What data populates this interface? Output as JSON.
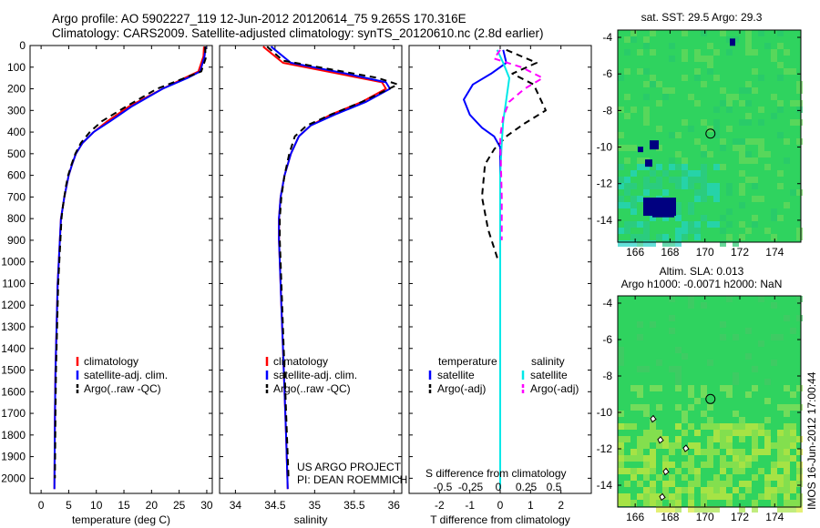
{
  "header": {
    "line1": "Argo profile: AO 5902227_119 12-Jun-2012 20120614_75 9.265S 170.316E",
    "line2": "Climatology: CARS2009. Satellite-adjusted climatology: synTS_20120610.nc (2.8d earlier)"
  },
  "colors": {
    "climatology": "#ff0000",
    "satellite": "#0000ff",
    "argo": "#000000",
    "salinity_satellite": "#00e8e8",
    "salinity_argo": "#ff00ff",
    "map_green": "#2fd35f",
    "map_cyan": "#22d3c8",
    "map_blue": "#000080",
    "map_yellow": "#d8ea3a"
  },
  "depth_axis": {
    "ticks": [
      "0",
      "100",
      "200",
      "300",
      "400",
      "500",
      "600",
      "700",
      "800",
      "900",
      "1000",
      "1100",
      "1200",
      "1300",
      "1400",
      "1500",
      "1600",
      "1700",
      "1800",
      "1900",
      "2000"
    ],
    "range": [
      0,
      2070
    ]
  },
  "panels": [
    {
      "id": "temperature",
      "xlabel": "temperature (deg C)",
      "xticks": [
        "0",
        "5",
        "10",
        "15",
        "20",
        "25",
        "30"
      ],
      "xrange": [
        -2,
        31
      ],
      "legend": [
        "climatology",
        "satellite-adj. clim.",
        "Argo(..raw -QC)"
      ]
    },
    {
      "id": "salinity",
      "xlabel": "salinity",
      "xticks": [
        "34",
        "34.5",
        "35",
        "35.5",
        "36"
      ],
      "xrange": [
        33.8,
        36.1
      ],
      "legend": [
        "climatology",
        "satellite-adj. clim.",
        "Argo(..raw -QC)"
      ],
      "credit1": "US ARGO PROJECT",
      "credit2": "PI: DEAN ROEMMICH"
    },
    {
      "id": "difference",
      "xlabel": "T difference from climatology",
      "xlabel_top": "S difference from climatology",
      "xticks": [
        "-2",
        "-1",
        "0",
        "1",
        "2"
      ],
      "sticks": [
        "-0.5",
        "-0.25",
        "0",
        "0.25",
        "0.5"
      ],
      "xrange": [
        -3,
        3
      ],
      "legend_head_t": "temperature",
      "legend_head_s": "salinity",
      "legend_t": [
        "satellite",
        "Argo(-adj)"
      ],
      "legend_s": [
        "satellite",
        "Argo(-adj)"
      ]
    }
  ],
  "maps": [
    {
      "id": "sst-map",
      "title": "sat. SST: 29.5 Argo: 29.3",
      "yticks": [
        "-4",
        "-6",
        "-8",
        "-10",
        "-12",
        "-14"
      ],
      "xticks": [
        "166",
        "168",
        "170",
        "172",
        "174"
      ]
    },
    {
      "id": "sla-map",
      "title_line1": "Altim. SLA: 0.013",
      "title_line2": "Argo h1000: -0.0071 h2000: NaN",
      "yticks": [
        "-4",
        "-6",
        "-8",
        "-10",
        "-12",
        "-14"
      ],
      "xticks": [
        "166",
        "168",
        "170",
        "172",
        "174"
      ]
    }
  ],
  "footer": {
    "timestamp": "IMOS 16-Jun-2012 17:00:44"
  },
  "chart_data": [
    {
      "type": "line",
      "title": "",
      "xlabel": "temperature (deg C)",
      "ylabel": "",
      "xlim": [
        -2,
        31
      ],
      "ylim": [
        2070,
        0
      ],
      "series": [
        {
          "name": "climatology",
          "color": "#ff0000",
          "dash": "solid",
          "x": [
            29.5,
            29.4,
            28.5,
            26,
            22,
            16,
            12,
            9.5,
            7.5,
            6.3,
            5.6,
            5.0,
            4.6,
            4.2,
            3.9,
            3.6,
            3.4,
            3.2,
            3.0,
            2.9,
            2.8,
            2.6,
            2.5,
            2.4
          ],
          "y": [
            5,
            50,
            120,
            150,
            200,
            280,
            350,
            400,
            450,
            500,
            550,
            600,
            650,
            700,
            750,
            800,
            900,
            1000,
            1100,
            1200,
            1300,
            1500,
            1700,
            2050
          ]
        },
        {
          "name": "satellite-adj. clim.",
          "color": "#0000ff",
          "dash": "solid",
          "x": [
            29.8,
            29.6,
            28.8,
            26.5,
            22,
            16.5,
            12.5,
            9.5,
            7.5,
            6.3,
            5.6,
            5.0,
            4.6,
            4.2,
            3.9,
            3.6,
            3.4,
            3.2,
            3.0,
            2.9,
            2.8,
            2.6,
            2.5,
            2.4
          ],
          "y": [
            5,
            50,
            120,
            150,
            200,
            280,
            350,
            400,
            450,
            500,
            550,
            600,
            650,
            700,
            750,
            800,
            900,
            1000,
            1100,
            1200,
            1300,
            1500,
            1700,
            2050
          ]
        },
        {
          "name": "Argo(..raw -QC)",
          "color": "#000000",
          "dash": "dashed",
          "x": [
            29.7,
            29.8,
            29.0,
            26,
            21,
            15.5,
            11,
            8.8,
            7.2,
            6.2,
            5.5,
            4.9,
            4.5,
            4.2,
            3.9,
            3.7,
            3.5,
            3.3,
            3.1,
            3.0,
            2.9,
            2.7,
            2.6,
            2.5
          ],
          "y": [
            5,
            60,
            120,
            150,
            200,
            280,
            350,
            400,
            450,
            500,
            550,
            600,
            650,
            700,
            750,
            800,
            900,
            1000,
            1100,
            1200,
            1300,
            1500,
            1700,
            2000
          ]
        }
      ]
    },
    {
      "type": "line",
      "title": "",
      "xlabel": "salinity",
      "ylabel": "",
      "xlim": [
        33.8,
        36.1
      ],
      "ylim": [
        2070,
        0
      ],
      "series": [
        {
          "name": "climatology",
          "color": "#ff0000",
          "dash": "solid",
          "x": [
            34.35,
            34.6,
            35.3,
            35.85,
            35.9,
            35.6,
            35.2,
            34.95,
            34.8,
            34.7,
            34.62,
            34.57,
            34.55,
            34.55,
            34.56,
            34.58,
            34.6,
            34.62,
            34.64,
            34.66
          ],
          "y": [
            5,
            80,
            130,
            170,
            200,
            260,
            320,
            370,
            420,
            500,
            600,
            700,
            800,
            900,
            1000,
            1200,
            1400,
            1600,
            1800,
            2050
          ]
        },
        {
          "name": "satellite-adj. clim.",
          "color": "#0000ff",
          "dash": "solid",
          "x": [
            34.45,
            34.7,
            35.4,
            35.9,
            35.95,
            35.65,
            35.25,
            34.95,
            34.8,
            34.7,
            34.62,
            34.57,
            34.55,
            34.55,
            34.56,
            34.58,
            34.6,
            34.62,
            34.64,
            34.66
          ],
          "y": [
            5,
            80,
            130,
            170,
            200,
            260,
            320,
            370,
            420,
            500,
            600,
            700,
            800,
            900,
            1000,
            1200,
            1400,
            1600,
            1800,
            2050
          ]
        },
        {
          "name": "Argo(..raw -QC)",
          "color": "#000000",
          "dash": "dashed",
          "x": [
            34.4,
            34.6,
            35.2,
            35.8,
            36.05,
            35.6,
            35.2,
            34.9,
            34.75,
            34.68,
            34.62,
            34.58,
            34.56,
            34.56,
            34.57,
            34.59,
            34.61,
            34.63,
            34.65,
            34.67
          ],
          "y": [
            5,
            70,
            110,
            150,
            180,
            260,
            320,
            370,
            420,
            500,
            600,
            700,
            800,
            900,
            1000,
            1200,
            1400,
            1600,
            1800,
            2000
          ]
        }
      ]
    },
    {
      "type": "line",
      "title": "",
      "xlabel": "T difference from climatology",
      "ylabel": "",
      "xlim": [
        -3,
        3
      ],
      "ylim": [
        2070,
        0
      ],
      "series": [
        {
          "name": "temperature satellite",
          "color": "#0000ff",
          "dash": "solid",
          "x": [
            0.1,
            0.2,
            -0.3,
            -0.9,
            -1.2,
            -1.0,
            -0.6,
            -0.2,
            0,
            0,
            0,
            0,
            0,
            0,
            0
          ],
          "y": [
            20,
            80,
            130,
            180,
            250,
            320,
            380,
            420,
            470,
            600,
            800,
            1000,
            1300,
            1700,
            2050
          ]
        },
        {
          "name": "temperature Argo(-adj)",
          "color": "#000000",
          "dash": "dashed",
          "x": [
            0.2,
            1.2,
            0.4,
            1.1,
            1.5,
            0.8,
            0.2,
            -0.2,
            -0.5,
            -0.6,
            -0.4,
            -0.1,
            0
          ],
          "y": [
            20,
            80,
            130,
            180,
            300,
            360,
            420,
            480,
            550,
            700,
            850,
            980,
            1000
          ]
        },
        {
          "name": "salinity satellite",
          "color": "#00e8e8",
          "dash": "solid",
          "x": [
            -0.1,
            0.1,
            0.3,
            0.2,
            0.1,
            0.05,
            0,
            0,
            0,
            0,
            0
          ],
          "y": [
            20,
            80,
            150,
            250,
            350,
            450,
            600,
            900,
            1300,
            1700,
            2050
          ]
        },
        {
          "name": "salinity Argo(-adj)",
          "color": "#ff00ff",
          "dash": "dashed",
          "x": [
            0,
            -0.2,
            0.7,
            1.4,
            0.8,
            0.3,
            0.1,
            0,
            0.05,
            0.05
          ],
          "y": [
            20,
            60,
            100,
            150,
            200,
            260,
            330,
            420,
            700,
            900
          ]
        }
      ]
    },
    {
      "type": "heatmap",
      "title": "sat. SST: 29.5 Argo: 29.3",
      "xlabel": "",
      "ylabel": "",
      "xlim": [
        165,
        175.5
      ],
      "ylim": [
        -15.2,
        -3.6
      ],
      "argo_position": {
        "lon": 170.316,
        "lat": -9.265
      }
    },
    {
      "type": "heatmap",
      "title": "Altim. SLA: 0.013",
      "xlabel": "",
      "ylabel": "",
      "xlim": [
        165,
        175.5
      ],
      "ylim": [
        -15.2,
        -3.6
      ],
      "argo_position": {
        "lon": 170.316,
        "lat": -9.265
      }
    }
  ]
}
